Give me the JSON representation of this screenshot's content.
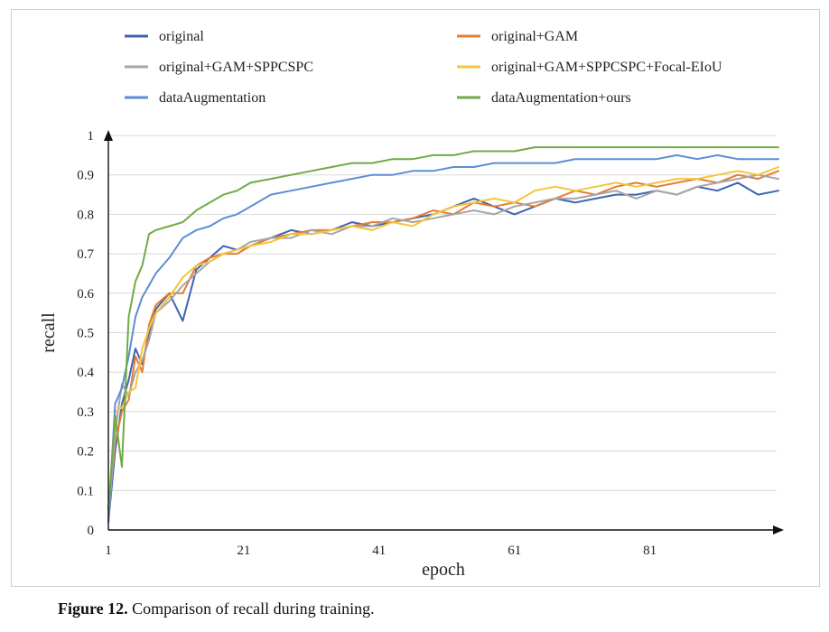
{
  "caption": {
    "label": "Figure 12.",
    "text": " Comparison of recall during training."
  },
  "chart_data": {
    "type": "line",
    "xlabel": "epoch",
    "ylabel": "recall",
    "xlim": [
      1,
      100
    ],
    "ylim": [
      0,
      1
    ],
    "x_ticks": [
      "1",
      "21",
      "41",
      "61",
      "81"
    ],
    "y_ticks": [
      "0",
      "0.1",
      "0.2",
      "0.3",
      "0.4",
      "0.5",
      "0.6",
      "0.7",
      "0.8",
      "0.9",
      "1"
    ],
    "grid": "horizontal",
    "legend_position": "top",
    "x": [
      1,
      2,
      3,
      4,
      5,
      6,
      7,
      8,
      10,
      12,
      14,
      16,
      18,
      20,
      22,
      25,
      28,
      31,
      34,
      37,
      40,
      43,
      46,
      49,
      52,
      55,
      58,
      61,
      64,
      67,
      70,
      73,
      76,
      79,
      82,
      85,
      88,
      91,
      94,
      97,
      100
    ],
    "series": [
      {
        "name": "original",
        "color": "#3e64b0",
        "values": [
          0.02,
          0.2,
          0.32,
          0.38,
          0.46,
          0.42,
          0.5,
          0.56,
          0.6,
          0.53,
          0.66,
          0.69,
          0.72,
          0.71,
          0.72,
          0.74,
          0.76,
          0.75,
          0.76,
          0.78,
          0.77,
          0.78,
          0.79,
          0.8,
          0.82,
          0.84,
          0.82,
          0.8,
          0.82,
          0.84,
          0.83,
          0.84,
          0.85,
          0.85,
          0.86,
          0.85,
          0.87,
          0.86,
          0.88,
          0.85,
          0.86
        ]
      },
      {
        "name": "original+GAM",
        "color": "#e47c34",
        "values": [
          0.05,
          0.22,
          0.3,
          0.33,
          0.44,
          0.4,
          0.52,
          0.57,
          0.6,
          0.6,
          0.67,
          0.69,
          0.7,
          0.7,
          0.72,
          0.74,
          0.75,
          0.76,
          0.76,
          0.77,
          0.78,
          0.78,
          0.79,
          0.81,
          0.8,
          0.83,
          0.82,
          0.83,
          0.82,
          0.84,
          0.86,
          0.85,
          0.87,
          0.88,
          0.87,
          0.88,
          0.89,
          0.88,
          0.9,
          0.89,
          0.91
        ]
      },
      {
        "name": "original+GAM+SPPCSPC",
        "color": "#a6a6a6",
        "values": [
          0.02,
          0.25,
          0.37,
          0.34,
          0.4,
          0.43,
          0.48,
          0.55,
          0.58,
          0.62,
          0.65,
          0.68,
          0.7,
          0.71,
          0.73,
          0.74,
          0.74,
          0.76,
          0.75,
          0.77,
          0.77,
          0.79,
          0.78,
          0.79,
          0.8,
          0.81,
          0.8,
          0.82,
          0.83,
          0.84,
          0.84,
          0.85,
          0.86,
          0.84,
          0.86,
          0.85,
          0.87,
          0.88,
          0.89,
          0.9,
          0.89
        ]
      },
      {
        "name": "original+GAM+SPPCSPC+Focal-EIoU",
        "color": "#f5c43a",
        "values": [
          0.04,
          0.3,
          0.31,
          0.35,
          0.36,
          0.46,
          0.51,
          0.55,
          0.59,
          0.64,
          0.67,
          0.68,
          0.7,
          0.71,
          0.72,
          0.73,
          0.75,
          0.75,
          0.76,
          0.77,
          0.76,
          0.78,
          0.77,
          0.8,
          0.82,
          0.83,
          0.84,
          0.83,
          0.86,
          0.87,
          0.86,
          0.87,
          0.88,
          0.87,
          0.88,
          0.89,
          0.89,
          0.9,
          0.91,
          0.9,
          0.92
        ]
      },
      {
        "name": "dataAugmentation",
        "color": "#5b8ed3",
        "values": [
          0.02,
          0.32,
          0.36,
          0.44,
          0.54,
          0.59,
          0.62,
          0.65,
          0.69,
          0.74,
          0.76,
          0.77,
          0.79,
          0.8,
          0.82,
          0.85,
          0.86,
          0.87,
          0.88,
          0.89,
          0.9,
          0.9,
          0.91,
          0.91,
          0.92,
          0.92,
          0.93,
          0.93,
          0.93,
          0.93,
          0.94,
          0.94,
          0.94,
          0.94,
          0.94,
          0.95,
          0.94,
          0.95,
          0.94,
          0.94,
          0.94
        ]
      },
      {
        "name": "dataAugmentation+ours",
        "color": "#6fab46",
        "values": [
          0.05,
          0.29,
          0.16,
          0.54,
          0.63,
          0.67,
          0.75,
          0.76,
          0.77,
          0.78,
          0.81,
          0.83,
          0.85,
          0.86,
          0.88,
          0.89,
          0.9,
          0.91,
          0.92,
          0.93,
          0.93,
          0.94,
          0.94,
          0.95,
          0.95,
          0.96,
          0.96,
          0.96,
          0.97,
          0.97,
          0.97,
          0.97,
          0.97,
          0.97,
          0.97,
          0.97,
          0.97,
          0.97,
          0.97,
          0.97,
          0.97
        ]
      }
    ]
  }
}
